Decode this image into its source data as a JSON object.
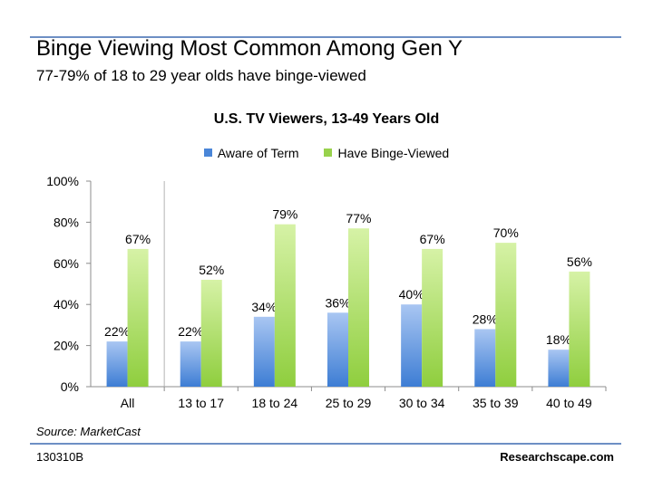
{
  "slide": {
    "title": "Binge Viewing Most Common Among Gen Y",
    "subtitle": "77-79% of 18 to 29 year olds have binge-viewed",
    "source": "Source: MarketCast",
    "code": "130310B",
    "brand": "Researchscape.com"
  },
  "chart_data": {
    "type": "bar",
    "title": "U.S. TV Viewers, 13-49 Years Old",
    "xlabel": "",
    "ylabel": "",
    "categories": [
      "All",
      "13 to 17",
      "18 to 24",
      "25 to 29",
      "30 to 34",
      "35 to 39",
      "40 to 49"
    ],
    "series": [
      {
        "name": "Aware of Term",
        "values": [
          22,
          22,
          34,
          36,
          40,
          28,
          18
        ],
        "labels": [
          "22%",
          "22%",
          "34%",
          "36%",
          "40%",
          "28%",
          "18%"
        ],
        "color_top": "#a9c6f2",
        "color_bottom": "#3d7dd4"
      },
      {
        "name": "Have Binge-Viewed",
        "values": [
          67,
          52,
          79,
          77,
          67,
          70,
          56
        ],
        "labels": [
          "67%",
          "52%",
          "79%",
          "77%",
          "67%",
          "70%",
          "56%"
        ],
        "color_top": "#d6f2a6",
        "color_bottom": "#8fce3e"
      }
    ],
    "ylim": [
      0,
      100
    ],
    "yticks": [
      0,
      20,
      40,
      60,
      80,
      100
    ],
    "ytick_labels": [
      "0%",
      "20%",
      "40%",
      "60%",
      "80%",
      "100%"
    ],
    "grid": false,
    "legend_position": "top",
    "separator_after_first_category": true
  }
}
